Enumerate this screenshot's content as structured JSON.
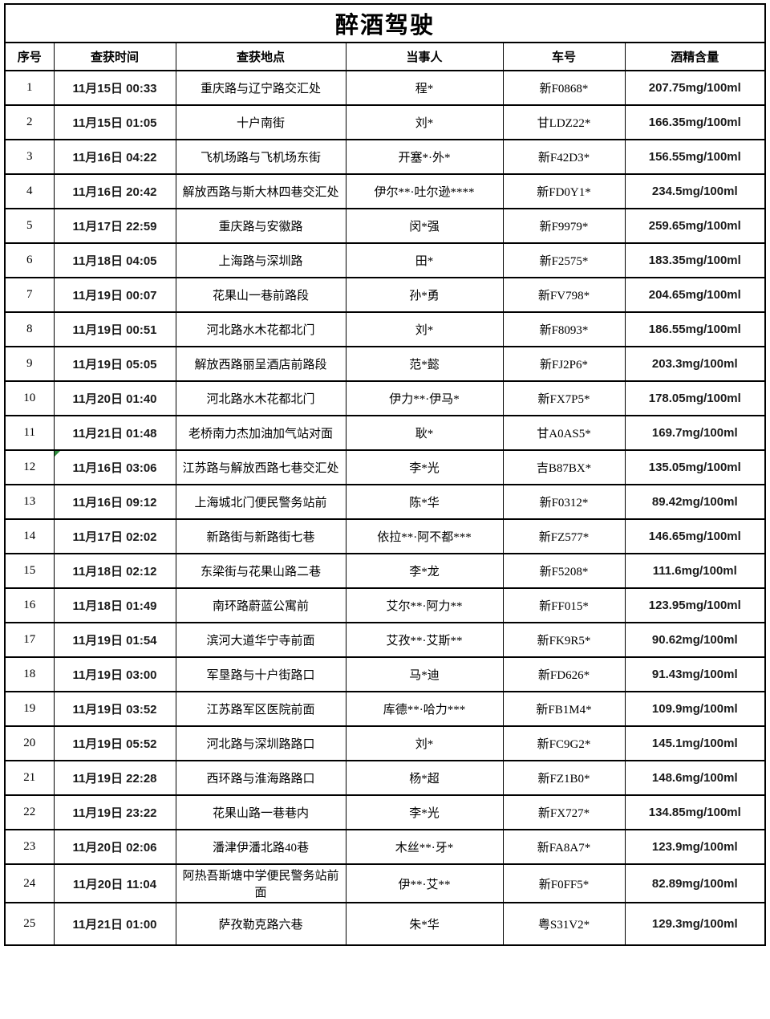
{
  "page": {
    "background": "#ffffff",
    "border_color": "#000000",
    "marker_color": "#2e8b3c"
  },
  "table": {
    "title": "醉酒驾驶",
    "columns": [
      "序号",
      "查获时间",
      "查获地点",
      "当事人",
      "车号",
      "酒精含量"
    ],
    "rows": [
      {
        "no": "1",
        "time": "11月15日 00:33",
        "location": "重庆路与辽宁路交汇处",
        "party": "程*",
        "plate": "新F0868*",
        "alcohol": "207.75mg/100ml"
      },
      {
        "no": "2",
        "time": "11月15日 01:05",
        "location": "十户南街",
        "party": "刘*",
        "plate": "甘LDZ22*",
        "alcohol": "166.35mg/100ml"
      },
      {
        "no": "3",
        "time": "11月16日 04:22",
        "location": "飞机场路与飞机场东街",
        "party": "开塞*·外*",
        "plate": "新F42D3*",
        "alcohol": "156.55mg/100ml"
      },
      {
        "no": "4",
        "time": "11月16日 20:42",
        "location": "解放西路与斯大林四巷交汇处",
        "party": "伊尔**·吐尔逊****",
        "plate": "新FD0Y1*",
        "alcohol": "234.5mg/100ml"
      },
      {
        "no": "5",
        "time": "11月17日 22:59",
        "location": "重庆路与安徽路",
        "party": "闵*强",
        "plate": "新F9979*",
        "alcohol": "259.65mg/100ml"
      },
      {
        "no": "6",
        "time": "11月18日 04:05",
        "location": "上海路与深圳路",
        "party": "田*",
        "plate": "新F2575*",
        "alcohol": "183.35mg/100ml"
      },
      {
        "no": "7",
        "time": "11月19日 00:07",
        "location": "花果山一巷前路段",
        "party": "孙*勇",
        "plate": "新FV798*",
        "alcohol": "204.65mg/100ml"
      },
      {
        "no": "8",
        "time": "11月19日 00:51",
        "location": "河北路水木花都北门",
        "party": "刘*",
        "plate": "新F8093*",
        "alcohol": "186.55mg/100ml"
      },
      {
        "no": "9",
        "time": "11月19日 05:05",
        "location": "解放西路丽呈酒店前路段",
        "party": "范*懿",
        "plate": "新FJ2P6*",
        "alcohol": "203.3mg/100ml"
      },
      {
        "no": "10",
        "time": "11月20日 01:40",
        "location": "河北路水木花都北门",
        "party": "伊力**·伊马*",
        "plate": "新FX7P5*",
        "alcohol": "178.05mg/100ml"
      },
      {
        "no": "11",
        "time": "11月21日 01:48",
        "location": "老桥南力杰加油加气站对面",
        "party": "耿*",
        "plate": "甘A0AS5*",
        "alcohol": "169.7mg/100ml"
      },
      {
        "no": "12",
        "time": "11月16日 03:06",
        "location": "江苏路与解放西路七巷交汇处",
        "party": "李*光",
        "plate": "吉B87BX*",
        "alcohol": "135.05mg/100ml",
        "corner_marker": "green-triangle"
      },
      {
        "no": "13",
        "time": "11月16日 09:12",
        "location": "上海城北门便民警务站前",
        "party": "陈*华",
        "plate": "新F0312*",
        "alcohol": "89.42mg/100ml"
      },
      {
        "no": "14",
        "time": "11月17日 02:02",
        "location": "新路街与新路街七巷",
        "party": "依拉**·阿不都***",
        "plate": "新FZ577*",
        "alcohol": "146.65mg/100ml"
      },
      {
        "no": "15",
        "time": "11月18日 02:12",
        "location": "东梁街与花果山路二巷",
        "party": "李*龙",
        "plate": "新F5208*",
        "alcohol": "111.6mg/100ml"
      },
      {
        "no": "16",
        "time": "11月18日 01:49",
        "location": "南环路蔚蓝公寓前",
        "party": "艾尔**·阿力**",
        "plate": "新FF015*",
        "alcohol": "123.95mg/100ml"
      },
      {
        "no": "17",
        "time": "11月19日 01:54",
        "location": "滨河大道华宁寺前面",
        "party": "艾孜**·艾斯**",
        "plate": "新FK9R5*",
        "alcohol": "90.62mg/100ml"
      },
      {
        "no": "18",
        "time": "11月19日 03:00",
        "location": "军垦路与十户街路口",
        "party": "马*迪",
        "plate": "新FD626*",
        "alcohol": "91.43mg/100ml"
      },
      {
        "no": "19",
        "time": "11月19日 03:52",
        "location": "江苏路军区医院前面",
        "party": "库德**·哈力***",
        "plate": "新FB1M4*",
        "alcohol": "109.9mg/100ml"
      },
      {
        "no": "20",
        "time": "11月19日 05:52",
        "location": "河北路与深圳路路口",
        "party": "刘*",
        "plate": "新FC9G2*",
        "alcohol": "145.1mg/100ml"
      },
      {
        "no": "21",
        "time": "11月19日 22:28",
        "location": "西环路与淮海路路口",
        "party": "杨*超",
        "plate": "新FZ1B0*",
        "alcohol": "148.6mg/100ml"
      },
      {
        "no": "22",
        "time": "11月19日 23:22",
        "location": "花果山路一巷巷内",
        "party": "李*光",
        "plate": "新FX727*",
        "alcohol": "134.85mg/100ml"
      },
      {
        "no": "23",
        "time": "11月20日 02:06",
        "location": "潘津伊潘北路40巷",
        "party": "木丝**·牙*",
        "plate": "新FA8A7*",
        "alcohol": "123.9mg/100ml"
      },
      {
        "no": "24",
        "time": "11月20日 11:04",
        "location": "阿热吾斯塘中学便民警务站前面",
        "party": "伊**·艾**",
        "plate": "新F0FF5*",
        "alcohol": "82.89mg/100ml"
      },
      {
        "no": "25",
        "time": "11月21日 01:00",
        "location": "萨孜勒克路六巷",
        "party": "朱*华",
        "plate": "粤S31V2*",
        "alcohol": "129.3mg/100ml"
      }
    ]
  }
}
